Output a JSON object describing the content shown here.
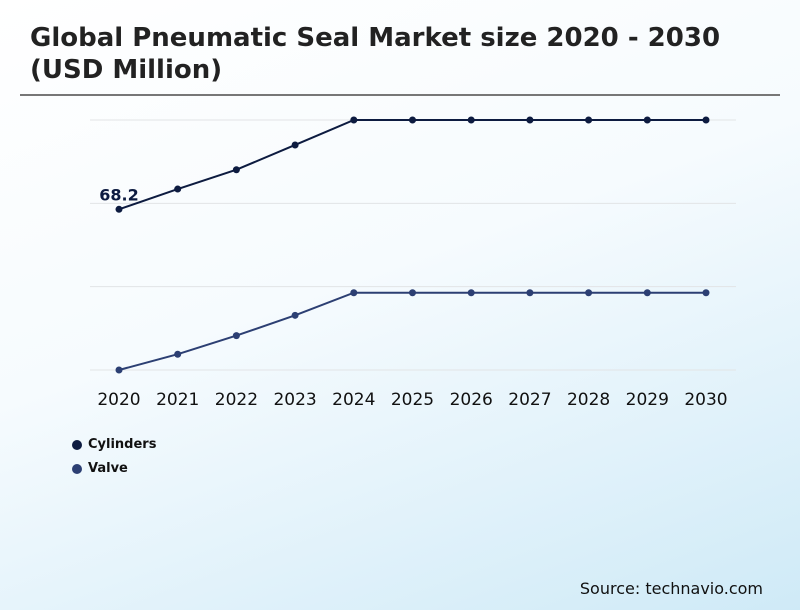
{
  "chart_data": {
    "type": "line",
    "title": "Global Pneumatic Seal Market size 2020 - 2030 (USD Million)",
    "xlabel": "",
    "ylabel": "",
    "categories": [
      "2020",
      "2021",
      "2022",
      "2023",
      "2024",
      "2025",
      "2026",
      "2027",
      "2028",
      "2029",
      "2030"
    ],
    "series": [
      {
        "name": "Cylinders",
        "color": "#0d1b40",
        "values": [
          68.2,
          76.8,
          85.0,
          95.5,
          106.1,
          106.1,
          106.1,
          106.1,
          106.1,
          106.1,
          106.1
        ]
      },
      {
        "name": "Valve",
        "color": "#2c3f73",
        "values": [
          0,
          6.7,
          14.6,
          23.2,
          32.8,
          32.8,
          32.8,
          32.8,
          32.8,
          32.8,
          32.8
        ]
      }
    ],
    "data_labels": [
      {
        "series": "Cylinders",
        "category": "2020",
        "text": "68.2"
      }
    ],
    "ylim": [
      0,
      106.1
    ],
    "y_ticks_shown": false,
    "grid": true,
    "legend_position": "bottom-left"
  },
  "source": "Source: technavio.com"
}
